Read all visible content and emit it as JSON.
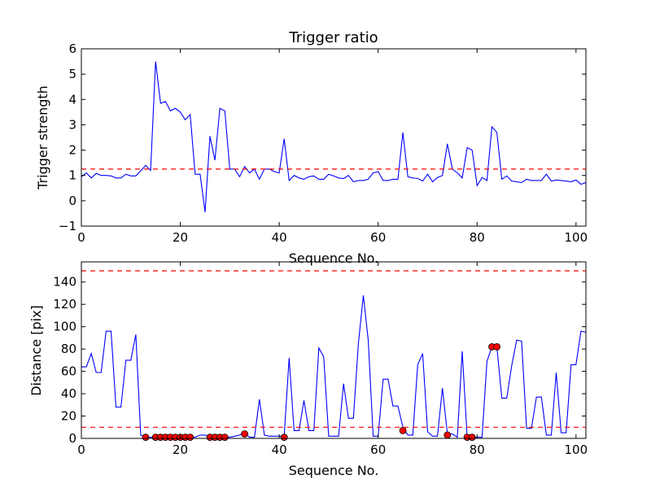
{
  "chart_data": [
    {
      "type": "line",
      "title": "Trigger ratio",
      "xlabel": "Sequence No.",
      "ylabel": "Trigger strength",
      "xlim": [
        0,
        102
      ],
      "ylim": [
        -1,
        6
      ],
      "xticks": [
        "0",
        "20",
        "40",
        "60",
        "80",
        "100"
      ],
      "yticks": [
        "−1",
        "0",
        "1",
        "2",
        "3",
        "4",
        "5",
        "6"
      ],
      "grid": false,
      "series": [
        {
          "color": "#0000ff",
          "style": "solid",
          "x": [
            0,
            1,
            2,
            3,
            4,
            5,
            6,
            7,
            8,
            9,
            10,
            11,
            12,
            13,
            14,
            15,
            16,
            17,
            18,
            19,
            20,
            21,
            22,
            23,
            24,
            25,
            26,
            27,
            28,
            29,
            30,
            31,
            32,
            33,
            34,
            35,
            36,
            37,
            38,
            39,
            40,
            41,
            42,
            43,
            44,
            45,
            46,
            47,
            48,
            49,
            50,
            51,
            52,
            53,
            54,
            55,
            56,
            57,
            58,
            59,
            60,
            61,
            62,
            63,
            64,
            65,
            66,
            67,
            68,
            69,
            70,
            71,
            72,
            73,
            74,
            75,
            76,
            77,
            78,
            79,
            80,
            81,
            82,
            83,
            84,
            85,
            86,
            87,
            88,
            89,
            90,
            91,
            92,
            93,
            94,
            95,
            96,
            97,
            98,
            99,
            100,
            101,
            102
          ],
          "values": [
            0.95,
            1.1,
            0.9,
            1.08,
            1.0,
            1.0,
            0.98,
            0.9,
            0.9,
            1.05,
            0.98,
            0.98,
            1.18,
            1.4,
            1.2,
            5.5,
            3.85,
            3.92,
            3.55,
            3.65,
            3.5,
            3.2,
            3.4,
            1.05,
            1.05,
            -0.45,
            2.55,
            1.6,
            3.65,
            3.55,
            1.25,
            1.25,
            0.95,
            1.35,
            1.1,
            1.25,
            0.85,
            1.25,
            1.25,
            1.15,
            1.1,
            2.45,
            0.8,
            1.0,
            0.9,
            0.85,
            0.95,
            0.98,
            0.85,
            0.85,
            1.05,
            0.98,
            0.9,
            0.88,
            1.0,
            0.75,
            0.8,
            0.8,
            0.85,
            1.1,
            1.15,
            0.8,
            0.8,
            0.85,
            0.85,
            2.7,
            0.95,
            0.9,
            0.88,
            0.78,
            1.05,
            0.75,
            0.92,
            1.0,
            2.25,
            1.25,
            1.1,
            0.9,
            2.1,
            2.0,
            0.6,
            0.92,
            0.8,
            2.92,
            2.7,
            0.85,
            0.98,
            0.78,
            0.75,
            0.72,
            0.85,
            0.8,
            0.8,
            0.8,
            1.05,
            0.78,
            0.82,
            0.8,
            0.78,
            0.75,
            0.82,
            0.65,
            0.72
          ]
        },
        {
          "color": "#ff0000",
          "style": "dashed",
          "x": [
            0,
            102
          ],
          "values": [
            1.25,
            1.25
          ]
        }
      ]
    },
    {
      "type": "line",
      "title": "",
      "xlabel": "Sequence No.",
      "ylabel": "Distance [pix]",
      "xlim": [
        0,
        102
      ],
      "ylim": [
        0,
        158
      ],
      "xticks": [
        "0",
        "20",
        "40",
        "60",
        "80",
        "100"
      ],
      "yticks": [
        "0",
        "20",
        "40",
        "60",
        "80",
        "100",
        "120",
        "140"
      ],
      "grid": false,
      "series": [
        {
          "color": "#0000ff",
          "style": "solid",
          "x": [
            0,
            1,
            2,
            3,
            4,
            5,
            6,
            7,
            8,
            9,
            10,
            11,
            12,
            13,
            14,
            15,
            16,
            17,
            18,
            19,
            20,
            21,
            22,
            23,
            24,
            25,
            26,
            27,
            28,
            29,
            30,
            31,
            32,
            33,
            34,
            35,
            36,
            37,
            38,
            39,
            40,
            41,
            42,
            43,
            44,
            45,
            46,
            47,
            48,
            49,
            50,
            51,
            52,
            53,
            54,
            55,
            56,
            57,
            58,
            59,
            60,
            61,
            62,
            63,
            64,
            65,
            66,
            67,
            68,
            69,
            70,
            71,
            72,
            73,
            74,
            75,
            76,
            77,
            78,
            79,
            80,
            81,
            82,
            83,
            84,
            85,
            86,
            87,
            88,
            89,
            90,
            91,
            92,
            93,
            94,
            95,
            96,
            97,
            98,
            99,
            100,
            101,
            102
          ],
          "values": [
            64,
            64,
            76,
            59,
            59,
            96,
            96,
            28,
            28,
            70,
            70,
            93,
            3,
            1,
            1,
            1,
            1,
            1,
            1,
            1,
            1,
            1,
            1,
            1,
            3,
            3,
            1,
            1,
            1,
            1,
            1,
            2,
            3,
            5,
            1,
            1,
            35,
            3,
            2,
            2,
            2,
            2,
            72,
            7,
            7,
            34,
            7,
            7,
            81,
            73,
            2,
            2,
            2,
            49,
            18,
            18,
            85,
            128,
            88,
            2,
            2,
            53,
            53,
            29,
            29,
            10,
            3,
            3,
            66,
            76,
            6,
            2,
            2,
            45,
            4,
            4,
            1,
            78,
            1,
            1,
            1,
            1,
            69,
            82,
            82,
            36,
            36,
            65,
            88,
            87,
            9,
            9,
            37,
            37,
            3,
            3,
            59,
            5,
            5,
            66,
            66,
            96,
            95
          ]
        },
        {
          "color": "#ff0000",
          "style": "markers",
          "x": [
            13,
            15,
            16,
            17,
            18,
            19,
            20,
            21,
            22,
            26,
            27,
            28,
            29,
            33,
            41,
            65,
            74,
            78,
            79,
            83,
            84
          ],
          "values": [
            1,
            1,
            1,
            1,
            1,
            1,
            1,
            1,
            1,
            1,
            1,
            1,
            1,
            4,
            1,
            7,
            3,
            1,
            1,
            82,
            82
          ]
        },
        {
          "color": "#ff0000",
          "style": "dashed",
          "x": [
            0,
            102
          ],
          "values": [
            10,
            10
          ]
        },
        {
          "color": "#ff0000",
          "style": "dashed",
          "x": [
            0,
            102
          ],
          "values": [
            150,
            150
          ]
        }
      ]
    }
  ]
}
